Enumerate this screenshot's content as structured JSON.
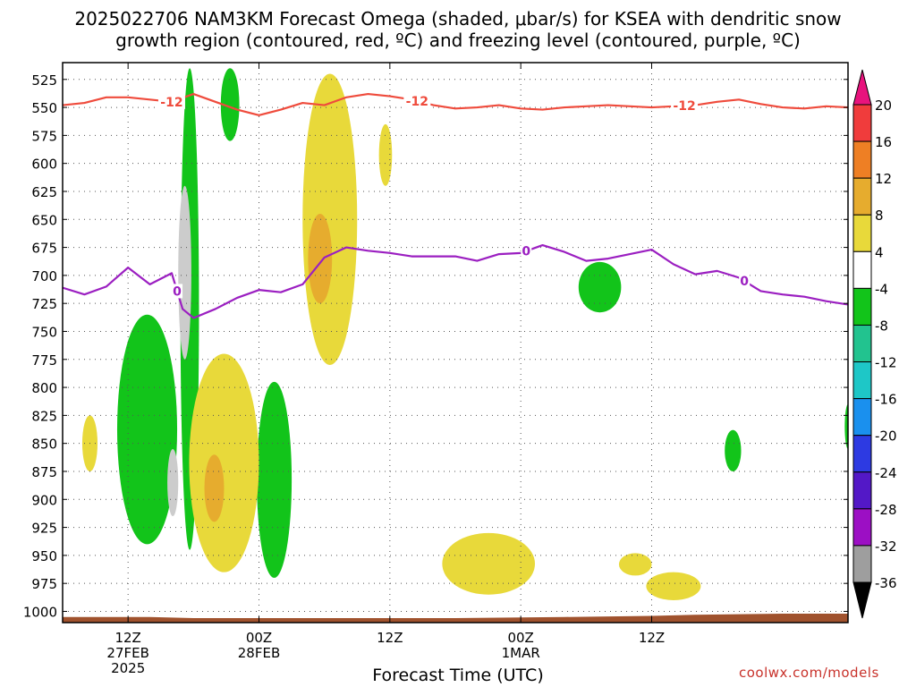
{
  "title_line1": "2025022706 NAM3KM Forecast Omega (shaded, μbar/s) for KSEA with dendritic snow",
  "title_line2": "growth region (contoured, red, ºC) and freezing level (contoured, purple, ºC)",
  "xlabel": "Forecast Time (UTC)",
  "credit": "coolwx.com/models",
  "colors": {
    "frame": "#000000",
    "grid": "#555555",
    "ground": "#a0522d",
    "dgz_contour": "#ef4b3c",
    "freezing_contour": "#9b1fc1"
  },
  "chart_data": {
    "type": "heatmap",
    "ylabel": "",
    "y_axis": {
      "label": "",
      "unit": "hPa",
      "range": [
        1010,
        510
      ],
      "ticks": [
        525,
        550,
        575,
        600,
        625,
        650,
        675,
        700,
        725,
        750,
        775,
        800,
        825,
        850,
        875,
        900,
        925,
        950,
        975,
        1000
      ]
    },
    "x_axis": {
      "label": "Forecast Time (UTC)",
      "range": [
        "2025-02-27 06Z",
        "2025-03-01 18Z"
      ],
      "ticks": [
        {
          "time": "2025-02-27 12Z",
          "label_lines": [
            "12Z",
            "27FEB",
            "2025"
          ]
        },
        {
          "time": "2025-02-28 00Z",
          "label_lines": [
            "00Z",
            "28FEB"
          ]
        },
        {
          "time": "2025-02-28 12Z",
          "label_lines": [
            "12Z"
          ]
        },
        {
          "time": "2025-03-01 00Z",
          "label_lines": [
            "00Z",
            "1MAR"
          ]
        },
        {
          "time": "2025-03-01 12Z",
          "label_lines": [
            "12Z"
          ]
        }
      ]
    },
    "grid": "dotted",
    "colorbar": {
      "placement": "right",
      "unit": "μbar/s",
      "labels": [
        20,
        16,
        12,
        8,
        4,
        -4,
        -8,
        -12,
        -16,
        -20,
        -24,
        -28,
        -32,
        -36
      ],
      "bins": [
        {
          "range": "> 20",
          "color": "#e8137d"
        },
        {
          "range": "16 to 20",
          "color": "#f03c3c"
        },
        {
          "range": "12 to 16",
          "color": "#ee7f24"
        },
        {
          "range": "8 to 12",
          "color": "#e6ac2e"
        },
        {
          "range": "4 to 8",
          "color": "#e8d93a"
        },
        {
          "range": "-4 to 4",
          "color": "#ffffff"
        },
        {
          "range": "-8 to -4",
          "color": "#12c41a"
        },
        {
          "range": "-12 to -8",
          "color": "#22c38f"
        },
        {
          "range": "-16 to -12",
          "color": "#1ec7c7"
        },
        {
          "range": "-20 to -16",
          "color": "#1a90ee"
        },
        {
          "range": "-24 to -20",
          "color": "#2d3ae2"
        },
        {
          "range": "-28 to -24",
          "color": "#5318c7"
        },
        {
          "range": "-32 to -28",
          "color": "#9c0fc4"
        },
        {
          "range": "-36 to -32",
          "color": "#9e9e9e"
        },
        {
          "range": "< -36",
          "color": "#000000"
        }
      ]
    },
    "contours": [
      {
        "name": "dendritic snow growth region",
        "level": -12,
        "label": "-12",
        "label_positions_hours": [
          16,
          38.5,
          63
        ],
        "points": [
          [
            6,
            548
          ],
          [
            8,
            546
          ],
          [
            10,
            541
          ],
          [
            12,
            541
          ],
          [
            14,
            543
          ],
          [
            16,
            545
          ],
          [
            18,
            538
          ],
          [
            20,
            545
          ],
          [
            22,
            552
          ],
          [
            24,
            557
          ],
          [
            26,
            552
          ],
          [
            28,
            546
          ],
          [
            30,
            548
          ],
          [
            32,
            541
          ],
          [
            34,
            538
          ],
          [
            36,
            540
          ],
          [
            38,
            543
          ],
          [
            40,
            548
          ],
          [
            42,
            551
          ],
          [
            44,
            550
          ],
          [
            46,
            548
          ],
          [
            48,
            551
          ],
          [
            50,
            552
          ],
          [
            52,
            550
          ],
          [
            54,
            549
          ],
          [
            56,
            548
          ],
          [
            58,
            549
          ],
          [
            60,
            550
          ],
          [
            62,
            549
          ],
          [
            64,
            548
          ],
          [
            66,
            545
          ],
          [
            68,
            543
          ],
          [
            70,
            547
          ],
          [
            72,
            550
          ],
          [
            74,
            551
          ],
          [
            76,
            549
          ],
          [
            78,
            550
          ]
        ]
      },
      {
        "name": "freezing level",
        "level": 0,
        "label": "0",
        "label_positions_hours": [
          16.5,
          48.5,
          68.5
        ],
        "points": [
          [
            6,
            711
          ],
          [
            8,
            717
          ],
          [
            10,
            710
          ],
          [
            12,
            693
          ],
          [
            14,
            708
          ],
          [
            16,
            698
          ],
          [
            17,
            730
          ],
          [
            18,
            738
          ],
          [
            20,
            730
          ],
          [
            22,
            720
          ],
          [
            24,
            713
          ],
          [
            26,
            715
          ],
          [
            28,
            708
          ],
          [
            30,
            684
          ],
          [
            32,
            675
          ],
          [
            34,
            678
          ],
          [
            36,
            680
          ],
          [
            38,
            683
          ],
          [
            40,
            683
          ],
          [
            42,
            683
          ],
          [
            44,
            687
          ],
          [
            46,
            681
          ],
          [
            48,
            680
          ],
          [
            50,
            673
          ],
          [
            52,
            679
          ],
          [
            54,
            687
          ],
          [
            56,
            685
          ],
          [
            58,
            681
          ],
          [
            60,
            677
          ],
          [
            62,
            690
          ],
          [
            64,
            699
          ],
          [
            66,
            696
          ],
          [
            68,
            702
          ],
          [
            70,
            714
          ],
          [
            72,
            717
          ],
          [
            74,
            719
          ],
          [
            76,
            723
          ],
          [
            78,
            726
          ]
        ]
      }
    ],
    "omega_regions": [
      {
        "sign": "negative",
        "min_ubar_s": -8,
        "max_ubar_s": -4,
        "hours": [
          16.8,
          18.5
        ],
        "pressure_hpa": [
          515,
          945
        ]
      },
      {
        "sign": "negative",
        "min_ubar_s": -8,
        "max_ubar_s": -4,
        "hours": [
          20.5,
          22.2
        ],
        "pressure_hpa": [
          515,
          580
        ]
      },
      {
        "sign": "negative",
        "min_ubar_s": -8,
        "max_ubar_s": -4,
        "hours": [
          11.0,
          16.5
        ],
        "pressure_hpa": [
          735,
          940
        ]
      },
      {
        "sign": "negative",
        "min_ubar_s": -8,
        "max_ubar_s": -4,
        "hours": [
          23.8,
          27.0
        ],
        "pressure_hpa": [
          795,
          970
        ]
      },
      {
        "sign": "negative",
        "min_ubar_s": -8,
        "max_ubar_s": -4,
        "hours": [
          53.3,
          57.2
        ],
        "pressure_hpa": [
          688,
          733
        ]
      },
      {
        "sign": "negative",
        "min_ubar_s": -8,
        "max_ubar_s": -4,
        "hours": [
          66.7,
          68.2
        ],
        "pressure_hpa": [
          838,
          875
        ]
      },
      {
        "sign": "negative",
        "min_ubar_s": -8,
        "max_ubar_s": -4,
        "hours": [
          77.7,
          78.3
        ],
        "pressure_hpa": [
          815,
          855
        ]
      },
      {
        "sign": "negative",
        "min_ubar_s": -16,
        "max_ubar_s": -8,
        "hours": [
          16.6,
          17.8
        ],
        "pressure_hpa": [
          620,
          775
        ]
      },
      {
        "sign": "negative",
        "min_ubar_s": -16,
        "max_ubar_s": -8,
        "hours": [
          15.6,
          16.6
        ],
        "pressure_hpa": [
          855,
          915
        ]
      },
      {
        "sign": "positive",
        "min_ubar_s": 4,
        "max_ubar_s": 8,
        "hours": [
          17.6,
          24.0
        ],
        "pressure_hpa": [
          770,
          965
        ]
      },
      {
        "sign": "positive",
        "min_ubar_s": 4,
        "max_ubar_s": 8,
        "hours": [
          7.8,
          9.2
        ],
        "pressure_hpa": [
          825,
          875
        ]
      },
      {
        "sign": "positive",
        "min_ubar_s": 4,
        "max_ubar_s": 8,
        "hours": [
          28.0,
          33.0
        ],
        "pressure_hpa": [
          520,
          780
        ]
      },
      {
        "sign": "positive",
        "min_ubar_s": 4,
        "max_ubar_s": 8,
        "hours": [
          35.0,
          36.2
        ],
        "pressure_hpa": [
          565,
          620
        ]
      },
      {
        "sign": "positive",
        "min_ubar_s": 4,
        "max_ubar_s": 8,
        "hours": [
          40.8,
          49.3
        ],
        "pressure_hpa": [
          930,
          985
        ]
      },
      {
        "sign": "positive",
        "min_ubar_s": 4,
        "max_ubar_s": 8,
        "hours": [
          57.0,
          60.0
        ],
        "pressure_hpa": [
          948,
          968
        ]
      },
      {
        "sign": "positive",
        "min_ubar_s": 4,
        "max_ubar_s": 8,
        "hours": [
          59.5,
          64.5
        ],
        "pressure_hpa": [
          965,
          990
        ]
      },
      {
        "sign": "positive",
        "min_ubar_s": 8,
        "max_ubar_s": 12,
        "hours": [
          19.0,
          20.8
        ],
        "pressure_hpa": [
          860,
          920
        ]
      },
      {
        "sign": "positive",
        "min_ubar_s": 8,
        "max_ubar_s": 12,
        "hours": [
          28.5,
          30.7
        ],
        "pressure_hpa": [
          645,
          725
        ]
      }
    ],
    "surface_pressure_hpa": [
      [
        6,
        1005
      ],
      [
        14,
        1005
      ],
      [
        18,
        1006
      ],
      [
        26,
        1006
      ],
      [
        34,
        1006
      ],
      [
        42,
        1006
      ],
      [
        52,
        1005
      ],
      [
        60,
        1004
      ],
      [
        64,
        1003
      ],
      [
        72,
        1002
      ],
      [
        78,
        1002
      ]
    ]
  }
}
